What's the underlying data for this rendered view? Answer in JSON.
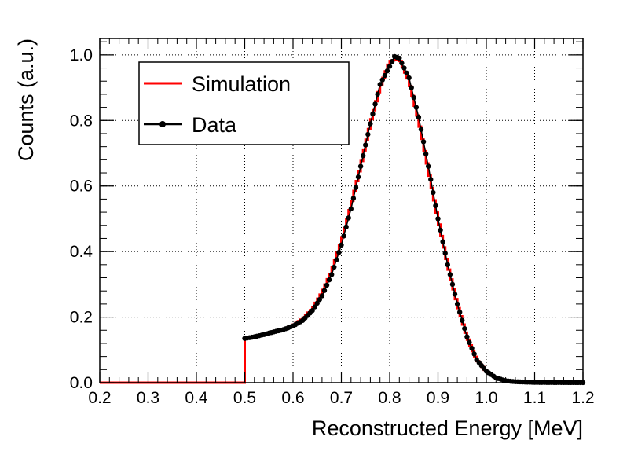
{
  "chart_data": {
    "type": "line",
    "title": "",
    "xlabel": "Reconstructed Energy [MeV]",
    "ylabel": "Counts (a.u.)",
    "xlim": [
      0.2,
      1.2
    ],
    "ylim": [
      0.0,
      1.05
    ],
    "xticks": [
      "0.2",
      "0.3",
      "0.4",
      "0.5",
      "0.6",
      "0.7",
      "0.8",
      "0.9",
      "1.0",
      "1.1",
      "1.2"
    ],
    "yticks": [
      "0.0",
      "0.2",
      "0.4",
      "0.6",
      "0.8",
      "1.0"
    ],
    "grid": true,
    "legend_position": "top-left",
    "series": [
      {
        "name": "Simulation",
        "style": "step",
        "color": "#ff0000",
        "x": [
          0.2,
          0.3,
          0.4,
          0.49,
          0.5,
          0.52,
          0.54,
          0.56,
          0.58,
          0.6,
          0.62,
          0.64,
          0.66,
          0.68,
          0.7,
          0.72,
          0.74,
          0.76,
          0.78,
          0.8,
          0.82,
          0.84,
          0.86,
          0.88,
          0.9,
          0.92,
          0.94,
          0.96,
          0.98,
          1.0,
          1.02,
          1.04,
          1.06,
          1.08,
          1.1,
          1.15,
          1.2
        ],
        "y": [
          0.0,
          0.0,
          0.0,
          0.0,
          0.135,
          0.14,
          0.148,
          0.155,
          0.163,
          0.175,
          0.195,
          0.225,
          0.275,
          0.34,
          0.43,
          0.54,
          0.66,
          0.79,
          0.9,
          0.98,
          0.99,
          0.92,
          0.8,
          0.65,
          0.5,
          0.36,
          0.24,
          0.14,
          0.07,
          0.035,
          0.015,
          0.006,
          0.003,
          0.002,
          0.001,
          0.0005,
          0.0003
        ]
      },
      {
        "name": "Data",
        "style": "markers-line",
        "color": "#000000",
        "x": [
          0.5,
          0.52,
          0.54,
          0.56,
          0.58,
          0.6,
          0.62,
          0.64,
          0.66,
          0.68,
          0.7,
          0.72,
          0.74,
          0.76,
          0.78,
          0.8,
          0.81,
          0.82,
          0.84,
          0.86,
          0.88,
          0.9,
          0.92,
          0.94,
          0.96,
          0.98,
          1.0,
          1.02,
          1.04,
          1.06,
          1.08,
          1.1,
          1.15,
          1.2
        ],
        "y": [
          0.135,
          0.14,
          0.147,
          0.155,
          0.162,
          0.173,
          0.19,
          0.22,
          0.265,
          0.33,
          0.42,
          0.53,
          0.66,
          0.79,
          0.91,
          0.965,
          0.995,
          0.99,
          0.93,
          0.81,
          0.66,
          0.5,
          0.36,
          0.24,
          0.14,
          0.07,
          0.035,
          0.015,
          0.006,
          0.003,
          0.002,
          0.001,
          0.0005,
          0.0003
        ]
      }
    ]
  },
  "legend": {
    "simulation_label": "Simulation",
    "data_label": "Data"
  }
}
